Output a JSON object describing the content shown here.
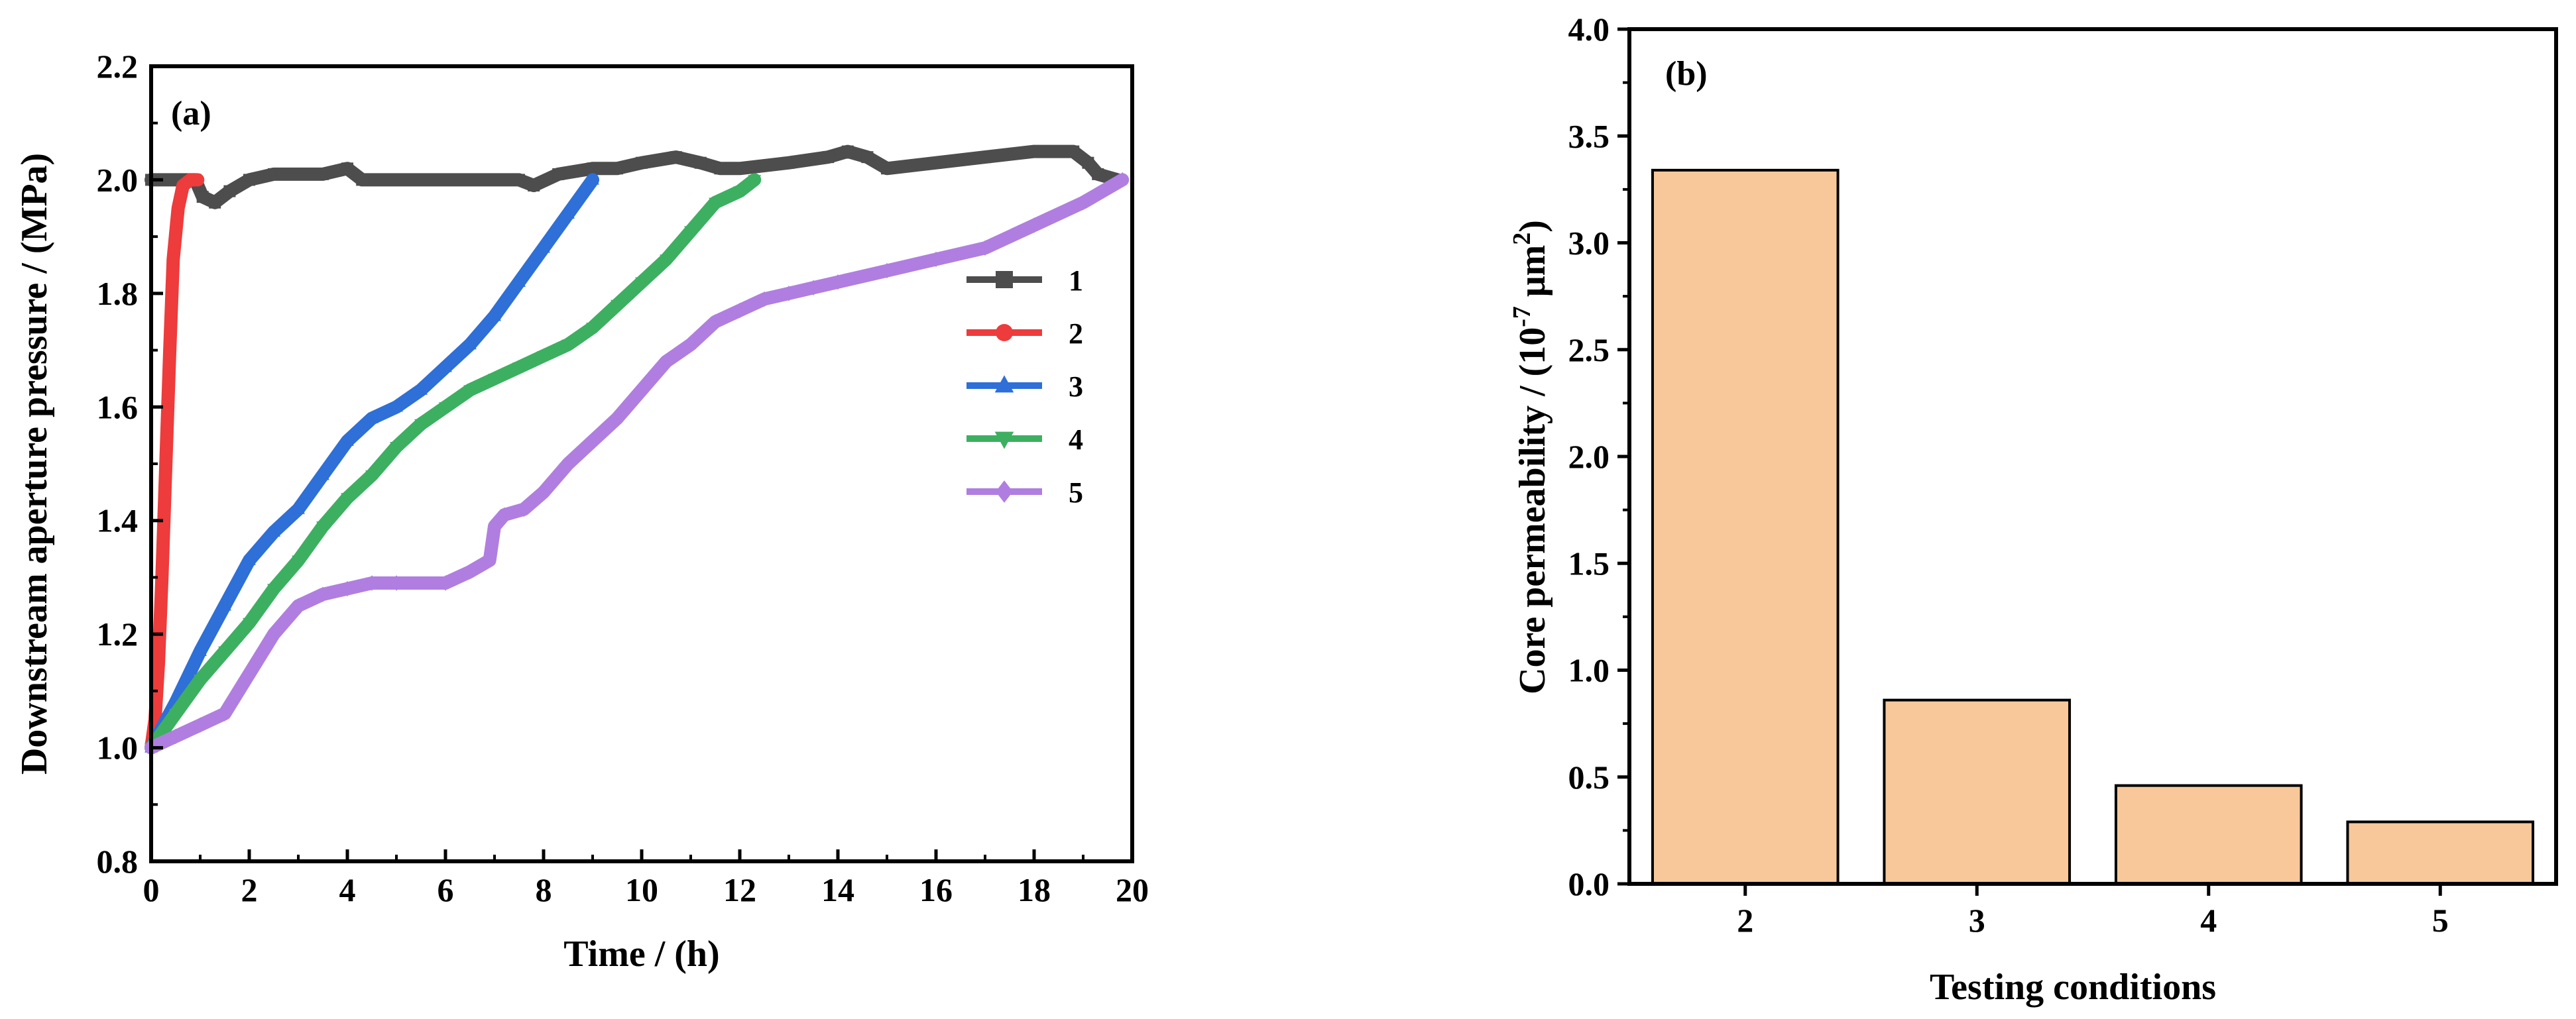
{
  "chart_data": [
    {
      "panel": "(a)",
      "type": "line",
      "xlabel": "Time / (h)",
      "ylabel": "Downstream aperture pressure / (MPa)",
      "xlim": [
        0,
        20
      ],
      "ylim": [
        0.8,
        2.2
      ],
      "xticks": [
        "0",
        "2",
        "4",
        "6",
        "8",
        "10",
        "12",
        "14",
        "16",
        "18",
        "20"
      ],
      "yticks": [
        "0.8",
        "1.0",
        "1.2",
        "1.4",
        "1.6",
        "1.8",
        "2.0",
        "2.2"
      ],
      "legend_position": "right",
      "series": [
        {
          "name": "1",
          "color": "#4d4d4d",
          "marker": "square",
          "points": [
            [
              0,
              2.0
            ],
            [
              0.9,
              2.0
            ],
            [
              1.05,
              1.97
            ],
            [
              1.3,
              1.96
            ],
            [
              1.6,
              1.98
            ],
            [
              2.0,
              2.0
            ],
            [
              2.5,
              2.01
            ],
            [
              3.5,
              2.01
            ],
            [
              4.0,
              2.02
            ],
            [
              4.3,
              2.0
            ],
            [
              7.5,
              2.0
            ],
            [
              7.8,
              1.99
            ],
            [
              8.3,
              2.01
            ],
            [
              9.0,
              2.02
            ],
            [
              9.5,
              2.02
            ],
            [
              10.0,
              2.03
            ],
            [
              10.7,
              2.04
            ],
            [
              11.2,
              2.03
            ],
            [
              11.6,
              2.02
            ],
            [
              12.0,
              2.02
            ],
            [
              13.0,
              2.03
            ],
            [
              13.8,
              2.04
            ],
            [
              14.2,
              2.05
            ],
            [
              14.6,
              2.04
            ],
            [
              15.0,
              2.02
            ],
            [
              16.0,
              2.03
            ],
            [
              17.0,
              2.04
            ],
            [
              18.0,
              2.05
            ],
            [
              18.8,
              2.05
            ],
            [
              19.1,
              2.03
            ],
            [
              19.3,
              2.01
            ],
            [
              19.7,
              2.0
            ]
          ]
        },
        {
          "name": "2",
          "color": "#ee3b3b",
          "marker": "circle",
          "points": [
            [
              0,
              1.0
            ],
            [
              0.08,
              1.05
            ],
            [
              0.15,
              1.15
            ],
            [
              0.22,
              1.3
            ],
            [
              0.3,
              1.5
            ],
            [
              0.38,
              1.7
            ],
            [
              0.45,
              1.86
            ],
            [
              0.55,
              1.95
            ],
            [
              0.65,
              1.99
            ],
            [
              0.8,
              2.0
            ],
            [
              0.95,
              2.0
            ]
          ]
        },
        {
          "name": "3",
          "color": "#2e6fd8",
          "marker": "triangle-up",
          "points": [
            [
              0,
              1.0
            ],
            [
              0.5,
              1.08
            ],
            [
              1.0,
              1.17
            ],
            [
              1.5,
              1.25
            ],
            [
              2.0,
              1.33
            ],
            [
              2.5,
              1.38
            ],
            [
              3.0,
              1.42
            ],
            [
              3.5,
              1.48
            ],
            [
              4.0,
              1.54
            ],
            [
              4.5,
              1.58
            ],
            [
              5.0,
              1.6
            ],
            [
              5.5,
              1.63
            ],
            [
              6.0,
              1.67
            ],
            [
              6.5,
              1.71
            ],
            [
              7.0,
              1.76
            ],
            [
              7.5,
              1.82
            ],
            [
              8.0,
              1.88
            ],
            [
              8.5,
              1.94
            ],
            [
              9.0,
              2.0
            ]
          ]
        },
        {
          "name": "4",
          "color": "#3cb060",
          "marker": "triangle-down",
          "points": [
            [
              0,
              1.0
            ],
            [
              0.5,
              1.06
            ],
            [
              1.0,
              1.12
            ],
            [
              1.5,
              1.17
            ],
            [
              2.0,
              1.22
            ],
            [
              2.5,
              1.28
            ],
            [
              3.0,
              1.33
            ],
            [
              3.5,
              1.39
            ],
            [
              4.0,
              1.44
            ],
            [
              4.5,
              1.48
            ],
            [
              5.0,
              1.53
            ],
            [
              5.5,
              1.57
            ],
            [
              6.0,
              1.6
            ],
            [
              6.5,
              1.63
            ],
            [
              7.0,
              1.65
            ],
            [
              7.5,
              1.67
            ],
            [
              8.0,
              1.69
            ],
            [
              8.5,
              1.71
            ],
            [
              9.0,
              1.74
            ],
            [
              9.5,
              1.78
            ],
            [
              10.0,
              1.82
            ],
            [
              10.5,
              1.86
            ],
            [
              11.0,
              1.91
            ],
            [
              11.5,
              1.96
            ],
            [
              12.0,
              1.98
            ],
            [
              12.3,
              2.0
            ]
          ]
        },
        {
          "name": "5",
          "color": "#b07ee0",
          "marker": "diamond",
          "points": [
            [
              0,
              1.0
            ],
            [
              0.5,
              1.02
            ],
            [
              1.0,
              1.04
            ],
            [
              1.5,
              1.06
            ],
            [
              2.0,
              1.13
            ],
            [
              2.5,
              1.2
            ],
            [
              3.0,
              1.25
            ],
            [
              3.5,
              1.27
            ],
            [
              4.0,
              1.28
            ],
            [
              4.5,
              1.29
            ],
            [
              5.0,
              1.29
            ],
            [
              6.0,
              1.29
            ],
            [
              6.5,
              1.31
            ],
            [
              6.9,
              1.33
            ],
            [
              7.0,
              1.39
            ],
            [
              7.2,
              1.41
            ],
            [
              7.6,
              1.42
            ],
            [
              8.0,
              1.45
            ],
            [
              8.5,
              1.5
            ],
            [
              9.0,
              1.54
            ],
            [
              9.5,
              1.58
            ],
            [
              10.0,
              1.63
            ],
            [
              10.5,
              1.68
            ],
            [
              11.0,
              1.71
            ],
            [
              11.5,
              1.75
            ],
            [
              12.0,
              1.77
            ],
            [
              12.5,
              1.79
            ],
            [
              13.0,
              1.8
            ],
            [
              13.5,
              1.81
            ],
            [
              14.0,
              1.82
            ],
            [
              15.0,
              1.84
            ],
            [
              16.0,
              1.86
            ],
            [
              17.0,
              1.88
            ],
            [
              18.0,
              1.92
            ],
            [
              19.0,
              1.96
            ],
            [
              19.8,
              2.0
            ]
          ]
        }
      ]
    },
    {
      "panel": "(b)",
      "type": "bar",
      "xlabel": "Testing conditions",
      "ylabel_main": "Core permeability / (10",
      "ylabel_exp": "-7",
      "ylabel_mid": " μm",
      "ylabel_sup": "2",
      "ylabel_end": ")",
      "ylim": [
        0,
        4.0
      ],
      "yticks": [
        "0.0",
        "0.5",
        "1.0",
        "1.5",
        "2.0",
        "2.5",
        "3.0",
        "3.5",
        "4.0"
      ],
      "categories": [
        "2",
        "3",
        "4",
        "5"
      ],
      "values": [
        3.34,
        0.86,
        0.46,
        0.29
      ],
      "bar_color": "#f8c89a"
    }
  ]
}
